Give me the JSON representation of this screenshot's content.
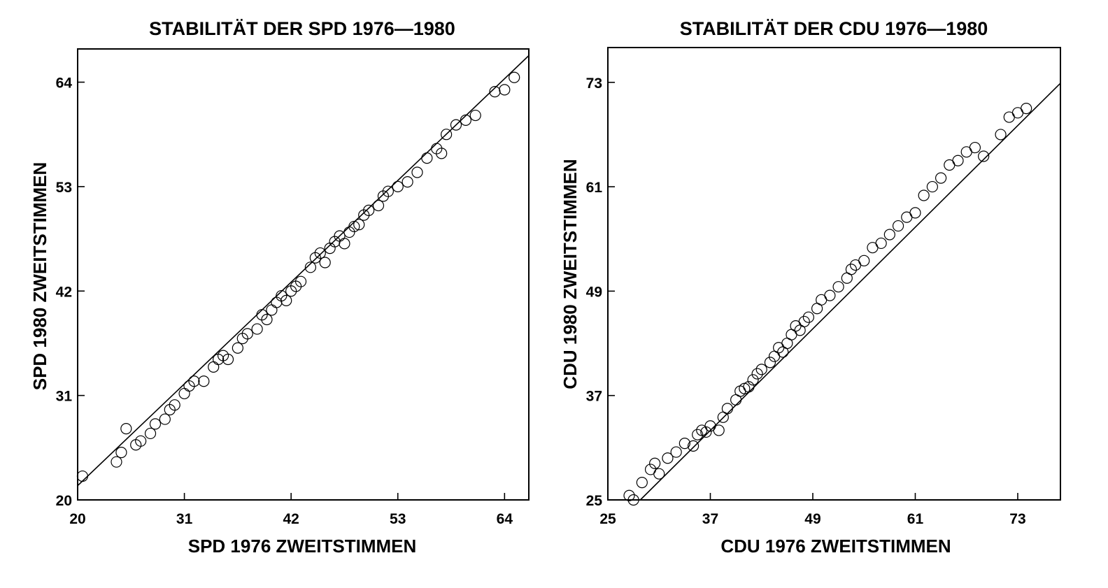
{
  "chart_data": [
    {
      "type": "scatter",
      "title": "STABILITÄT DER SPD 1976—1980",
      "xlabel": "SPD 1976 ZWEITSTIMMEN",
      "ylabel": "SPD 1980 ZWEITSTIMMEN",
      "xlim": [
        20,
        66.5
      ],
      "ylim": [
        20,
        67.5
      ],
      "xticks": [
        "20",
        "31",
        "42",
        "53",
        "64"
      ],
      "yticks": [
        "20",
        "31",
        "42",
        "53",
        "64"
      ],
      "grid": false,
      "regression_line": [
        [
          20,
          21.5
        ],
        [
          66.5,
          66.8
        ]
      ],
      "points": [
        [
          20.5,
          22.5
        ],
        [
          24,
          24
        ],
        [
          24.5,
          25
        ],
        [
          25,
          27.5
        ],
        [
          26,
          25.8
        ],
        [
          26.5,
          26.2
        ],
        [
          27.5,
          27
        ],
        [
          28,
          28
        ],
        [
          29,
          28.5
        ],
        [
          29.5,
          29.5
        ],
        [
          30,
          30
        ],
        [
          31,
          31.2
        ],
        [
          31.5,
          32
        ],
        [
          32,
          32.5
        ],
        [
          33,
          32.5
        ],
        [
          34,
          34
        ],
        [
          34.5,
          34.8
        ],
        [
          35,
          35.2
        ],
        [
          35.5,
          34.8
        ],
        [
          36.5,
          36
        ],
        [
          37,
          37
        ],
        [
          37.5,
          37.5
        ],
        [
          38.5,
          38
        ],
        [
          39,
          39.5
        ],
        [
          39.5,
          39
        ],
        [
          40,
          40
        ],
        [
          40.5,
          40.8
        ],
        [
          41,
          41.5
        ],
        [
          41.5,
          41
        ],
        [
          42,
          42
        ],
        [
          42.5,
          42.5
        ],
        [
          43,
          43
        ],
        [
          44,
          44.5
        ],
        [
          44.5,
          45.5
        ],
        [
          45,
          46
        ],
        [
          45.5,
          45
        ],
        [
          46,
          46.5
        ],
        [
          46.5,
          47.2
        ],
        [
          47,
          47.8
        ],
        [
          47.5,
          47
        ],
        [
          48,
          48.2
        ],
        [
          48.5,
          48.8
        ],
        [
          49,
          49
        ],
        [
          49.5,
          50
        ],
        [
          50,
          50.5
        ],
        [
          51,
          51
        ],
        [
          51.5,
          52
        ],
        [
          52,
          52.5
        ],
        [
          53,
          53
        ],
        [
          54,
          53.5
        ],
        [
          55,
          54.5
        ],
        [
          56,
          56
        ],
        [
          57,
          57
        ],
        [
          57.5,
          56.5
        ],
        [
          58,
          58.5
        ],
        [
          59,
          59.5
        ],
        [
          60,
          60
        ],
        [
          61,
          60.5
        ],
        [
          63,
          63
        ],
        [
          64,
          63.2
        ],
        [
          65,
          64.5
        ]
      ]
    },
    {
      "type": "scatter",
      "title": "STABILITÄT DER CDU 1976—1980",
      "xlabel": "CDU 1976 ZWEITSTIMMEN",
      "ylabel": "CDU 1980 ZWEITSTIMMEN",
      "xlim": [
        25,
        78
      ],
      "ylim": [
        25,
        77
      ],
      "xticks": [
        "25",
        "37",
        "49",
        "61",
        "73"
      ],
      "yticks": [
        "25",
        "37",
        "49",
        "61",
        "73"
      ],
      "grid": false,
      "regression_line": [
        [
          28.8,
          25
        ],
        [
          78,
          72.9
        ]
      ],
      "points": [
        [
          27.5,
          25.5
        ],
        [
          28,
          25
        ],
        [
          29,
          27
        ],
        [
          30,
          28.5
        ],
        [
          30.5,
          29.2
        ],
        [
          31,
          28
        ],
        [
          32,
          29.8
        ],
        [
          33,
          30.5
        ],
        [
          34,
          31.5
        ],
        [
          35,
          31.2
        ],
        [
          35.5,
          32.5
        ],
        [
          36,
          33
        ],
        [
          36.5,
          32.8
        ],
        [
          37,
          33.5
        ],
        [
          38,
          33
        ],
        [
          38.5,
          34.5
        ],
        [
          39,
          35.5
        ],
        [
          40,
          36.5
        ],
        [
          40.5,
          37.5
        ],
        [
          41,
          37.8
        ],
        [
          41.5,
          38
        ],
        [
          42,
          38.8
        ],
        [
          42.5,
          39.5
        ],
        [
          43,
          40
        ],
        [
          44,
          40.8
        ],
        [
          44.5,
          41.5
        ],
        [
          45,
          42.5
        ],
        [
          45.5,
          42
        ],
        [
          46,
          43
        ],
        [
          46.5,
          44
        ],
        [
          47,
          45
        ],
        [
          47.5,
          44.5
        ],
        [
          48,
          45.5
        ],
        [
          48.5,
          46
        ],
        [
          49.5,
          47
        ],
        [
          50,
          48
        ],
        [
          51,
          48.5
        ],
        [
          52,
          49.5
        ],
        [
          53,
          50.5
        ],
        [
          53.5,
          51.5
        ],
        [
          54,
          52
        ],
        [
          55,
          52.5
        ],
        [
          56,
          54
        ],
        [
          57,
          54.5
        ],
        [
          58,
          55.5
        ],
        [
          59,
          56.5
        ],
        [
          60,
          57.5
        ],
        [
          61,
          58
        ],
        [
          62,
          60
        ],
        [
          63,
          61
        ],
        [
          64,
          62
        ],
        [
          65,
          63.5
        ],
        [
          66,
          64
        ],
        [
          67,
          65
        ],
        [
          68,
          65.5
        ],
        [
          69,
          64.5
        ],
        [
          71,
          67
        ],
        [
          72,
          69
        ],
        [
          73,
          69.5
        ],
        [
          74,
          70
        ]
      ]
    }
  ]
}
